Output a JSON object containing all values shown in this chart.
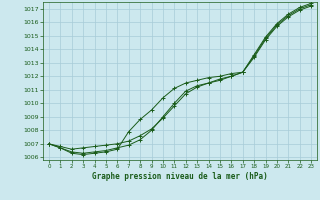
{
  "xlabel": "Graphe pression niveau de la mer (hPa)",
  "xlim": [
    -0.5,
    23.5
  ],
  "ylim": [
    1005.8,
    1017.5
  ],
  "yticks": [
    1006,
    1007,
    1008,
    1009,
    1010,
    1011,
    1012,
    1013,
    1014,
    1015,
    1016,
    1017
  ],
  "xticks": [
    0,
    1,
    2,
    3,
    4,
    5,
    6,
    7,
    8,
    9,
    10,
    11,
    12,
    13,
    14,
    15,
    16,
    17,
    18,
    19,
    20,
    21,
    22,
    23
  ],
  "bg_color": "#cce8ee",
  "grid_color": "#a8ccd8",
  "line_color": "#1a5c1a",
  "line1": [
    1007.0,
    1006.8,
    1006.6,
    1006.7,
    1006.8,
    1006.9,
    1007.0,
    1007.2,
    1007.6,
    1008.1,
    1008.9,
    1009.8,
    1010.7,
    1011.2,
    1011.5,
    1011.7,
    1012.0,
    1012.3,
    1013.5,
    1014.8,
    1015.8,
    1016.5,
    1017.0,
    1017.3
  ],
  "line2": [
    1007.0,
    1006.7,
    1006.4,
    1006.3,
    1006.4,
    1006.5,
    1006.7,
    1006.9,
    1007.3,
    1008.0,
    1009.0,
    1010.0,
    1010.9,
    1011.3,
    1011.5,
    1011.8,
    1012.0,
    1012.3,
    1013.4,
    1014.7,
    1015.7,
    1016.4,
    1016.9,
    1017.2
  ],
  "line3": [
    1007.0,
    1006.7,
    1006.3,
    1006.2,
    1006.3,
    1006.4,
    1006.6,
    1007.9,
    1008.8,
    1009.5,
    1010.4,
    1011.1,
    1011.5,
    1011.7,
    1011.9,
    1012.0,
    1012.2,
    1012.3,
    1013.6,
    1014.9,
    1015.9,
    1016.6,
    1017.1,
    1017.4
  ]
}
